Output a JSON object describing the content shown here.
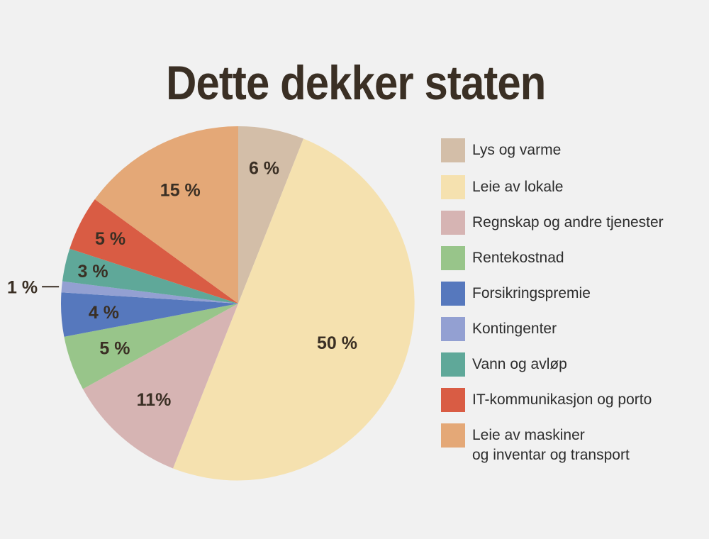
{
  "chart_data": {
    "type": "pie",
    "title": "Dette dekker staten",
    "start_angle_deg": 0,
    "direction": "clockwise",
    "slices": [
      {
        "label": "Lys og varme",
        "value": 6,
        "display": "6 %",
        "color": "#d3bea8"
      },
      {
        "label": "Leie av lokale",
        "value": 50,
        "display": "50 %",
        "color": "#f5e1af"
      },
      {
        "label": "Regnskap og andre tjenester",
        "value": 11,
        "display": "11%",
        "color": "#d6b4b3"
      },
      {
        "label": "Rentekostnad",
        "value": 5,
        "display": "5 %",
        "color": "#98c58a"
      },
      {
        "label": "Forsikringspremie",
        "value": 4,
        "display": "4 %",
        "color": "#5678bd"
      },
      {
        "label": "Kontingenter",
        "value": 1,
        "display": "1 %",
        "color": "#93a0d2"
      },
      {
        "label": "Vann og avløp",
        "value": 3,
        "display": "3 %",
        "color": "#5fa899"
      },
      {
        "label": "IT-kommunikasjon og porto",
        "value": 5,
        "display": "5 %",
        "color": "#d95c44"
      },
      {
        "label": "Leie av maskiner og inventar og transport",
        "value": 15,
        "display": "15 %",
        "color": "#e4a877"
      }
    ],
    "legend": [
      {
        "text": "Lys og varme",
        "color": "#d3bea8"
      },
      {
        "text": "Leie av lokale",
        "color": "#f5e1af"
      },
      {
        "text": "Regnskap og andre tjenester",
        "color": "#d6b4b3"
      },
      {
        "text": "Rentekostnad",
        "color": "#98c58a"
      },
      {
        "text": "Forsikringspremie",
        "color": "#5678bd"
      },
      {
        "text": "Kontingenter",
        "color": "#93a0d2"
      },
      {
        "text": "Vann og avløp",
        "color": "#5fa899"
      },
      {
        "text": "IT-kommunikasjon og porto",
        "color": "#d95c44"
      },
      {
        "text": "Leie av maskiner og inventar og transport",
        "color": "#e4a877"
      }
    ],
    "legend_position": "right"
  }
}
